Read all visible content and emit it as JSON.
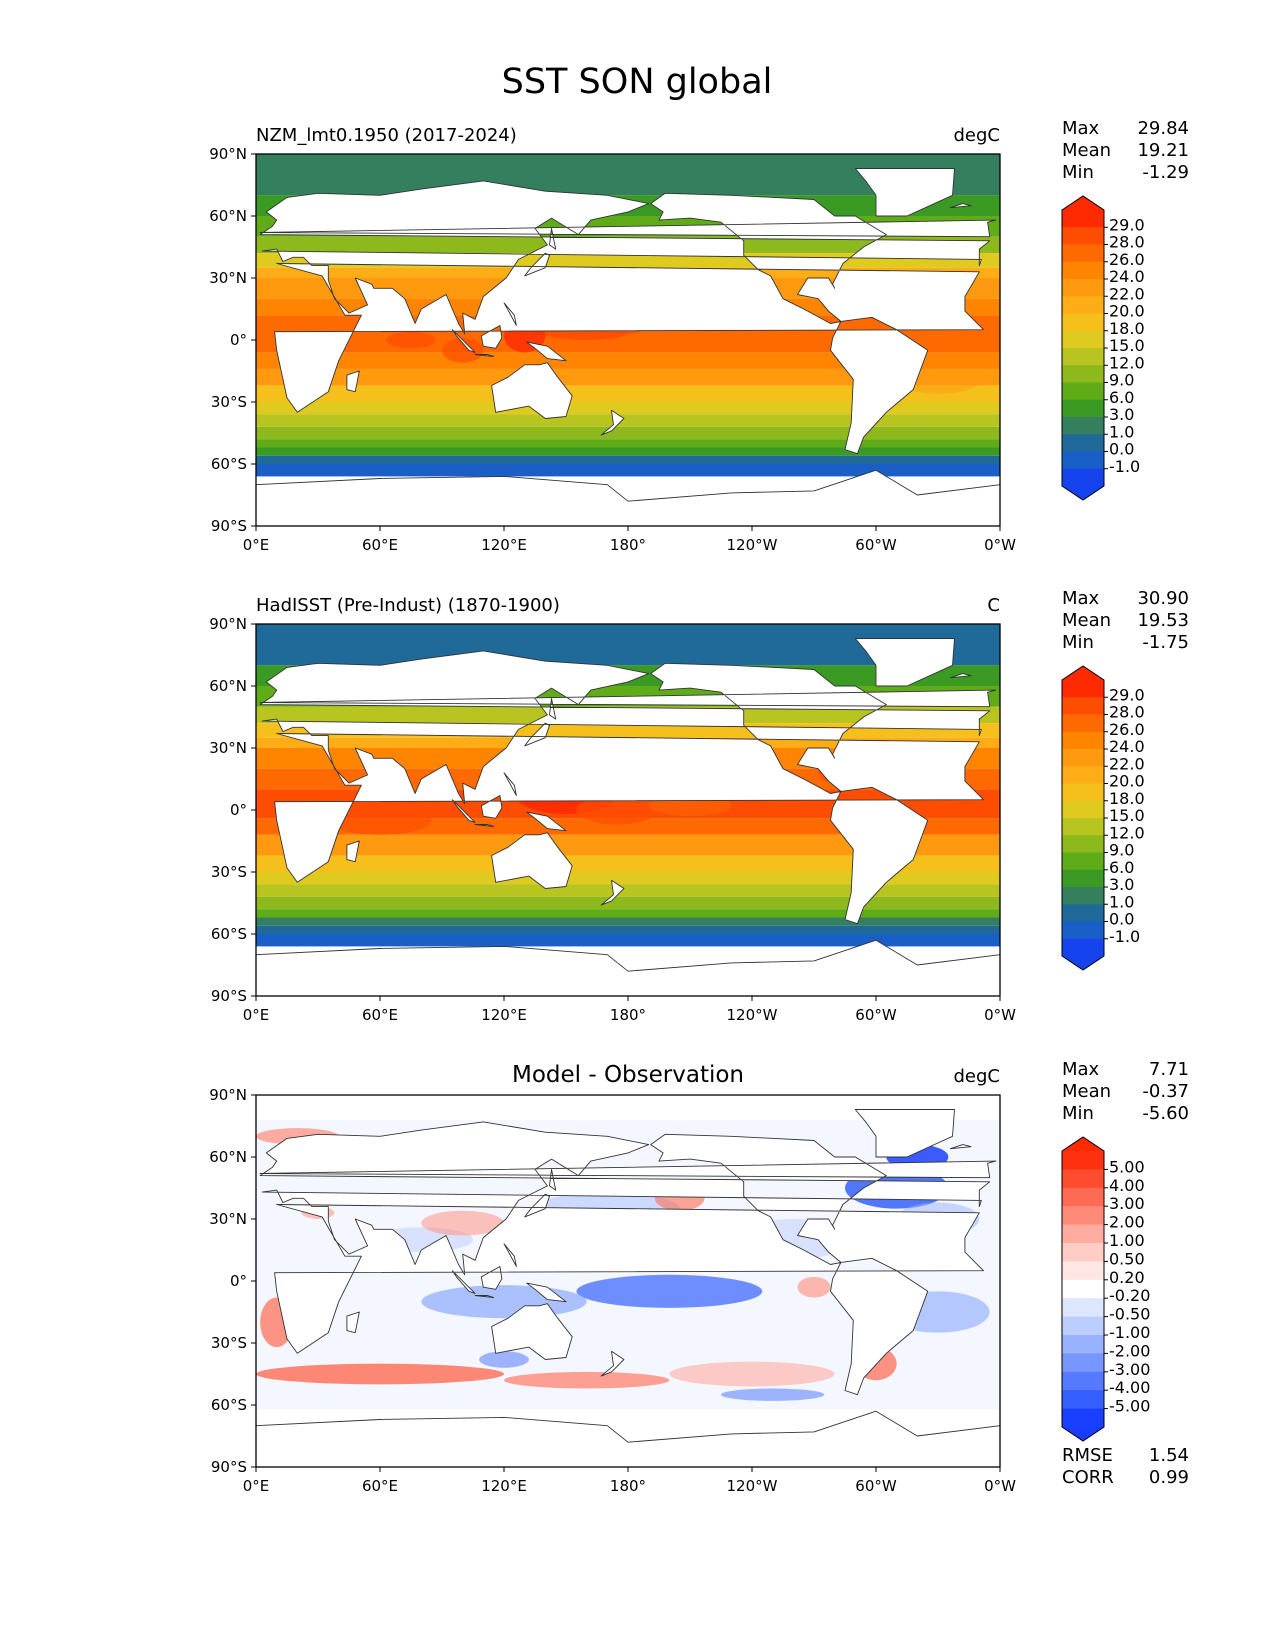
{
  "figure": {
    "title": "SST SON global"
  },
  "axes": {
    "lat_ticks": [
      "90°N",
      "60°N",
      "30°N",
      "0°",
      "30°S",
      "60°S",
      "90°S"
    ],
    "lon_ticks": [
      "0°E",
      "60°E",
      "120°E",
      "180°",
      "120°W",
      "60°W",
      "0°W"
    ]
  },
  "panels": [
    {
      "title_left": "NZM_lmt0.1950 (2017-2024)",
      "title_center": "",
      "units": "degC",
      "stats": [
        {
          "label": "Max",
          "value": "29.84"
        },
        {
          "label": "Mean",
          "value": "19.21"
        },
        {
          "label": "Min",
          "value": "-1.29"
        }
      ],
      "colorbar": {
        "labels": [
          "29.0",
          "28.0",
          "26.0",
          "24.0",
          "22.0",
          "20.0",
          "18.0",
          "15.0",
          "12.0",
          "9.0",
          "6.0",
          "3.0",
          "1.0",
          "0.0",
          "-1.0"
        ],
        "colors": [
          "#ff2a00",
          "#ff4d00",
          "#ff6a00",
          "#ff8400",
          "#ff9a10",
          "#ffad16",
          "#f5c01c",
          "#dfca20",
          "#b8c420",
          "#8eb91c",
          "#5fac18",
          "#3b9a24",
          "#347f5e",
          "#1f6a99",
          "#1a5ec8",
          "#1544ee"
        ],
        "max_color": "#ff2a00",
        "min_color": "#1544ee"
      },
      "extras": []
    },
    {
      "title_left": "HadISST (Pre-Indust) (1870-1900)",
      "title_center": "",
      "units": "C",
      "stats": [
        {
          "label": "Max",
          "value": "30.90"
        },
        {
          "label": "Mean",
          "value": "19.53"
        },
        {
          "label": "Min",
          "value": "-1.75"
        }
      ],
      "colorbar": {
        "labels": [
          "29.0",
          "28.0",
          "26.0",
          "24.0",
          "22.0",
          "20.0",
          "18.0",
          "15.0",
          "12.0",
          "9.0",
          "6.0",
          "3.0",
          "1.0",
          "0.0",
          "-1.0"
        ],
        "colors": [
          "#ff2a00",
          "#ff4d00",
          "#ff6a00",
          "#ff8400",
          "#ff9a10",
          "#ffad16",
          "#f5c01c",
          "#dfca20",
          "#b8c420",
          "#8eb91c",
          "#5fac18",
          "#3b9a24",
          "#347f5e",
          "#1f6a99",
          "#1a5ec8",
          "#1544ee"
        ],
        "max_color": "#ff2a00",
        "min_color": "#1544ee"
      },
      "extras": []
    },
    {
      "title_left": "",
      "title_center": "Model - Observation",
      "units": "degC",
      "stats": [
        {
          "label": "Max",
          "value": "7.71"
        },
        {
          "label": "Mean",
          "value": "-0.37"
        },
        {
          "label": "Min",
          "value": "-5.60"
        }
      ],
      "colorbar": {
        "labels": [
          "5.00",
          "4.00",
          "3.00",
          "2.00",
          "1.00",
          "0.50",
          "0.20",
          "-0.20",
          "-0.50",
          "-1.00",
          "-2.00",
          "-3.00",
          "-4.00",
          "-5.00"
        ],
        "colors": [
          "#ff3010",
          "#ff4c2e",
          "#ff6a52",
          "#ff8a78",
          "#ffaca0",
          "#ffcdc6",
          "#ffe8e4",
          "#ffffff",
          "#dde6ff",
          "#bccdff",
          "#99b2ff",
          "#7896ff",
          "#567aff",
          "#3460ff",
          "#1a40ff"
        ],
        "max_color": "#ff2a00",
        "min_color": "#1a3cff"
      },
      "extras": [
        {
          "label": "RMSE",
          "value": "1.54"
        },
        {
          "label": "CORR",
          "value": "0.99"
        }
      ]
    }
  ]
}
